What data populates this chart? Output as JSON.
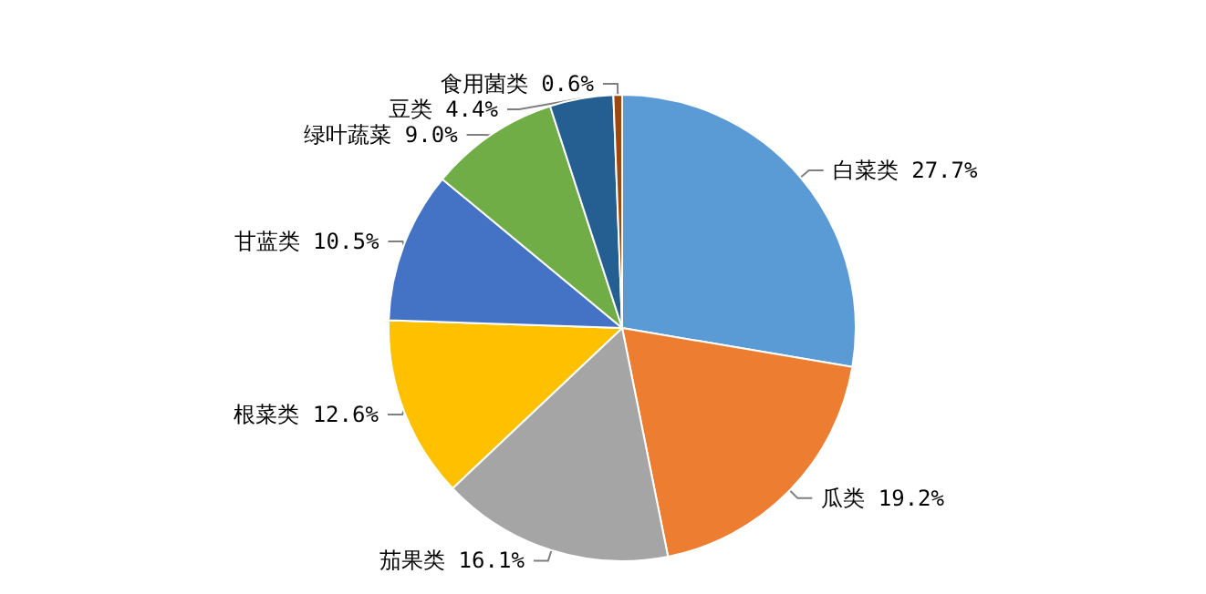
{
  "chart_data": {
    "type": "pie",
    "categories": [
      "白菜类",
      "瓜类",
      "茄果类",
      "根菜类",
      "甘蓝类",
      "绿叶蔬菜",
      "豆类",
      "食用菌类"
    ],
    "values": [
      27.7,
      19.2,
      16.1,
      12.6,
      10.5,
      9.0,
      4.4,
      0.6
    ],
    "value_labels": [
      "27.7%",
      "19.2%",
      "16.1%",
      "12.6%",
      "10.5%",
      "9.0%",
      "4.4%",
      "0.6%"
    ],
    "colors": [
      "#5b9bd5",
      "#ed7d31",
      "#a5a5a5",
      "#ffc000",
      "#4472c4",
      "#70ad47",
      "#255e91",
      "#9e480e"
    ]
  }
}
